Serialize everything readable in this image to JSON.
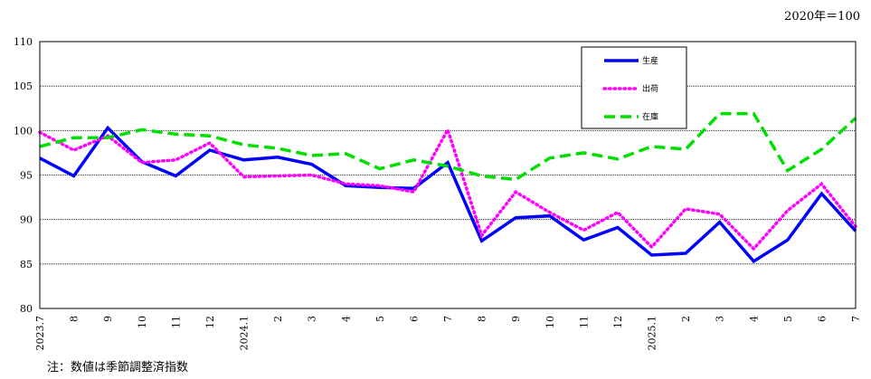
{
  "unit_label": "2020年＝100",
  "note": "注：数値は季節調整済指数",
  "chart_data": {
    "type": "line",
    "x": [
      "2023.7",
      "8",
      "9",
      "10",
      "11",
      "12",
      "2024.1",
      "2",
      "3",
      "4",
      "5",
      "6",
      "7",
      "8",
      "9",
      "10",
      "11",
      "12",
      "2025.1",
      "2",
      "3",
      "4",
      "5",
      "6",
      "7"
    ],
    "ylim": [
      80,
      110
    ],
    "yticks": [
      80,
      85,
      90,
      95,
      100,
      105,
      110
    ],
    "grid": "horizontal dotted",
    "legend_position": "top-right",
    "series": [
      {
        "name": "生産",
        "color": "#0000ff",
        "dash": "solid",
        "values": [
          96.9,
          94.9,
          100.3,
          96.5,
          94.9,
          97.8,
          96.7,
          97.0,
          96.2,
          93.8,
          93.6,
          93.5,
          96.4,
          87.6,
          90.2,
          90.4,
          87.7,
          89.1,
          86.0,
          86.2,
          89.7,
          85.3,
          87.7,
          92.9,
          88.7
        ]
      },
      {
        "name": "出荷",
        "color": "#ff00ff",
        "dash": "dotted",
        "values": [
          99.8,
          97.8,
          99.4,
          96.4,
          96.7,
          98.6,
          94.8,
          94.9,
          95.0,
          94.0,
          93.8,
          93.1,
          100.1,
          88.2,
          93.1,
          90.8,
          88.8,
          90.8,
          86.9,
          91.2,
          90.6,
          86.7,
          91.0,
          94.0,
          89.2
        ]
      },
      {
        "name": "在庫",
        "color": "#00dd00",
        "dash": "dashed",
        "values": [
          98.2,
          99.2,
          99.2,
          100.1,
          99.6,
          99.4,
          98.4,
          98.0,
          97.2,
          97.4,
          95.7,
          96.7,
          96.0,
          94.9,
          94.5,
          96.9,
          97.5,
          96.8,
          98.2,
          97.9,
          101.9,
          101.9,
          95.5,
          97.9,
          101.4
        ]
      }
    ]
  }
}
